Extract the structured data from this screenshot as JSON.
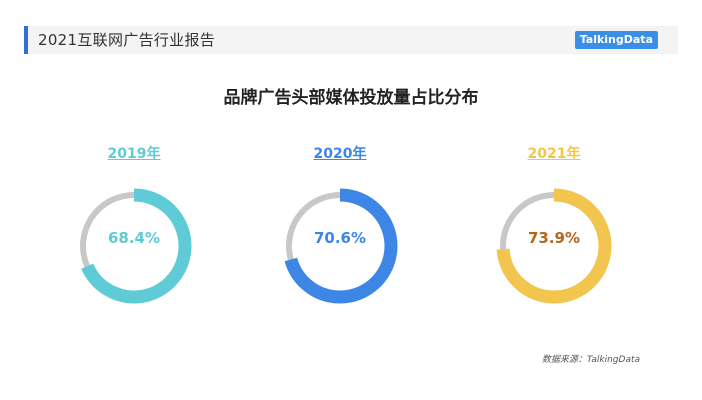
{
  "header": {
    "title": "2021互联网广告行业报告",
    "brand": "TalkingData",
    "accent_color": "#2e6fd8"
  },
  "chart_data": {
    "type": "pie",
    "subtype": "donut",
    "title": "品牌广告头部媒体投放量占比分布",
    "track_color": "#c8c8c8",
    "series": [
      {
        "name": "2019年",
        "value": 68.4,
        "label": "68.4%",
        "color": "#5ecbd6",
        "text_color": "#5ecbd6"
      },
      {
        "name": "2020年",
        "value": 70.6,
        "label": "70.6%",
        "color": "#3d86e6",
        "text_color": "#3d86e6"
      },
      {
        "name": "2021年",
        "value": 73.9,
        "label": "73.9%",
        "color": "#f2c54f",
        "text_color": "#b5651d"
      }
    ]
  },
  "source": "数据来源：TalkingData"
}
